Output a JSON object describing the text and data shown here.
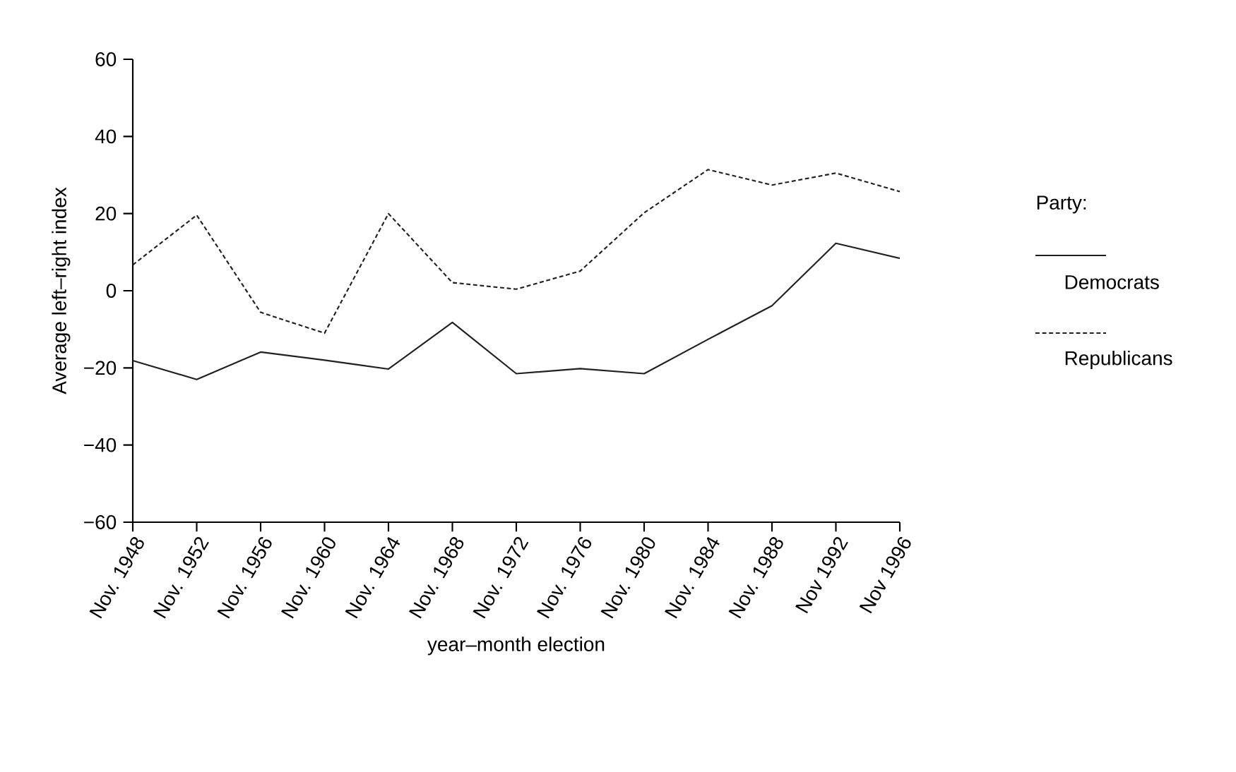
{
  "chart_data": {
    "type": "line",
    "xlabel": "year–month election",
    "ylabel": "Average left–right index",
    "legend_title": "Party:",
    "categories": [
      "Nov. 1948",
      "Nov. 1952",
      "Nov. 1956",
      "Nov. 1960",
      "Nov. 1964",
      "Nov. 1968",
      "Nov. 1972",
      "Nov. 1976",
      "Nov. 1980",
      "Nov. 1984",
      "Nov. 1988",
      "Nov 1992",
      "Nov 1996"
    ],
    "series": [
      {
        "name": "Democrats",
        "color": "#231f20",
        "line_style": "solid",
        "values": [
          -18.1,
          -23,
          -15.9,
          -18,
          -20.3,
          -8.2,
          -21.5,
          -20.2,
          -21.5,
          -12.6,
          -3.9,
          12.3,
          8.4
        ]
      },
      {
        "name": "Republicans",
        "color": "#231f20",
        "line_style": "dashed",
        "values": [
          6.7,
          19.6,
          -5.6,
          -11,
          20,
          2.1,
          0.4,
          5.1,
          20.2,
          31.4,
          27.4,
          30.5,
          25.7
        ]
      }
    ],
    "ylim": [
      -60,
      60
    ],
    "yticks": [
      {
        "value": -60,
        "label": "−60"
      },
      {
        "value": -40,
        "label": "−40"
      },
      {
        "value": -20,
        "label": "−20"
      },
      0,
      20,
      40,
      60
    ],
    "grid": false,
    "legend": "right",
    "marker": "none"
  }
}
